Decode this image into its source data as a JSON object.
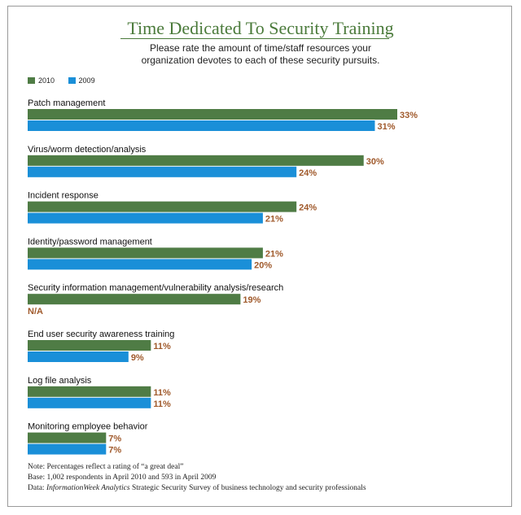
{
  "title": "Time Dedicated To Security Training",
  "subtitle_lines": [
    "Please rate the amount of time/staff resources your",
    "organization devotes to each of these security pursuits."
  ],
  "legend": [
    {
      "label": "2010",
      "color": "#4f7c45"
    },
    {
      "label": "2009",
      "color": "#1a8fd8"
    }
  ],
  "colors": {
    "value_label": "#a05a2c",
    "title": "#4a7a3a"
  },
  "chart_data": {
    "type": "bar",
    "orientation": "horizontal",
    "categories": [
      "Patch management",
      "Virus/worm detection/analysis",
      "Incident response",
      "Identity/password management",
      "Security information management/vulnerability analysis/research",
      "End user security awareness training",
      "Log file analysis",
      "Monitoring employee behavior"
    ],
    "series": [
      {
        "name": "2010",
        "values": [
          33,
          30,
          24,
          21,
          19,
          11,
          11,
          7
        ]
      },
      {
        "name": "2009",
        "values": [
          31,
          24,
          21,
          20,
          null,
          9,
          11,
          7
        ]
      }
    ],
    "value_labels": {
      "2010": [
        "33%",
        "30%",
        "24%",
        "21%",
        "19%",
        "11%",
        "11%",
        "7%"
      ],
      "2009": [
        "31%",
        "24%",
        "21%",
        "20%",
        "N/A",
        "9%",
        "11%",
        "7%"
      ]
    },
    "legend_position": "top-left",
    "grid": false
  },
  "notes": {
    "line1": "Note: Percentages reflect a rating of “a great deal”",
    "line2": "Base: 1,002 respondents in April 2010 and 593 in April 2009",
    "line3_prefix": "Data: ",
    "line3_source": "InformationWeek Analytics",
    "line3_suffix": " Strategic Security Survey of business technology and security professionals"
  }
}
